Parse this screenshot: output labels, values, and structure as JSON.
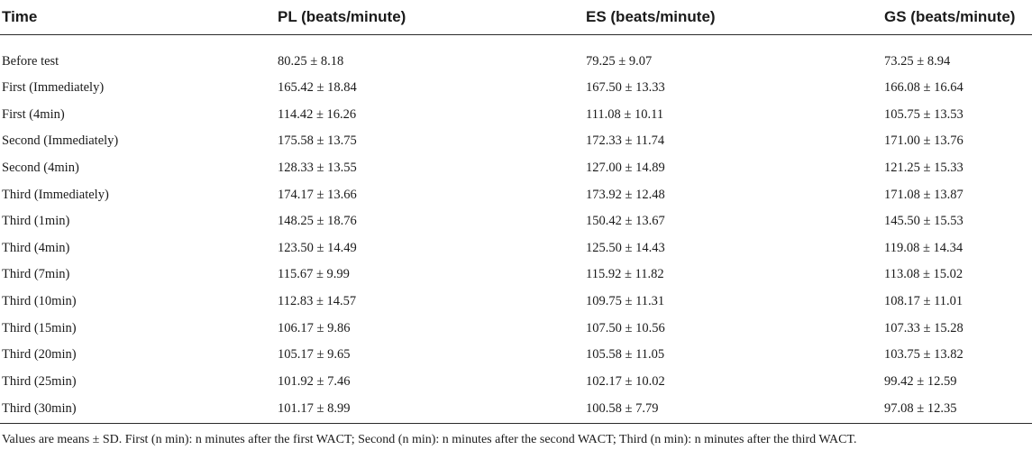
{
  "table": {
    "headers": {
      "time": "Time",
      "pl": "PL (beats/minute)",
      "es": "ES (beats/minute)",
      "gs": "GS (beats/minute)"
    },
    "rows": [
      {
        "time": "Before test",
        "pl": "80.25 ± 8.18",
        "es": "79.25 ± 9.07",
        "gs": "73.25 ± 8.94"
      },
      {
        "time": "First (Immediately)",
        "pl": "165.42 ± 18.84",
        "es": "167.50 ± 13.33",
        "gs": "166.08 ± 16.64"
      },
      {
        "time": "First (4min)",
        "pl": "114.42 ± 16.26",
        "es": "111.08 ± 10.11",
        "gs": "105.75 ± 13.53"
      },
      {
        "time": "Second (Immediately)",
        "pl": "175.58 ± 13.75",
        "es": "172.33 ± 11.74",
        "gs": "171.00 ± 13.76"
      },
      {
        "time": "Second (4min)",
        "pl": "128.33 ± 13.55",
        "es": "127.00 ± 14.89",
        "gs": "121.25 ± 15.33"
      },
      {
        "time": "Third (Immediately)",
        "pl": "174.17 ± 13.66",
        "es": "173.92 ± 12.48",
        "gs": "171.08 ± 13.87"
      },
      {
        "time": "Third (1min)",
        "pl": "148.25 ± 18.76",
        "es": "150.42 ± 13.67",
        "gs": "145.50 ± 15.53"
      },
      {
        "time": "Third (4min)",
        "pl": "123.50 ± 14.49",
        "es": "125.50 ± 14.43",
        "gs": "119.08 ± 14.34"
      },
      {
        "time": "Third (7min)",
        "pl": "115.67 ± 9.99",
        "es": "115.92 ± 11.82",
        "gs": "113.08 ± 15.02"
      },
      {
        "time": "Third (10min)",
        "pl": "112.83 ± 14.57",
        "es": "109.75 ± 11.31",
        "gs": "108.17 ± 11.01"
      },
      {
        "time": "Third (15min)",
        "pl": "106.17 ± 9.86",
        "es": "107.50 ± 10.56",
        "gs": "107.33 ± 15.28"
      },
      {
        "time": "Third (20min)",
        "pl": "105.17 ± 9.65",
        "es": "105.58 ± 11.05",
        "gs": "103.75 ± 13.82"
      },
      {
        "time": "Third (25min)",
        "pl": "101.92 ± 7.46",
        "es": "102.17 ± 10.02",
        "gs": "99.42 ± 12.59"
      },
      {
        "time": "Third (30min)",
        "pl": "101.17 ± 8.99",
        "es": "100.58 ± 7.79",
        "gs": "97.08 ± 12.35"
      }
    ]
  },
  "footnote": "Values are means ± SD. First (n min): n minutes after the first WACT; Second (n min): n minutes after the second WACT; Third (n min): n minutes after the third WACT."
}
